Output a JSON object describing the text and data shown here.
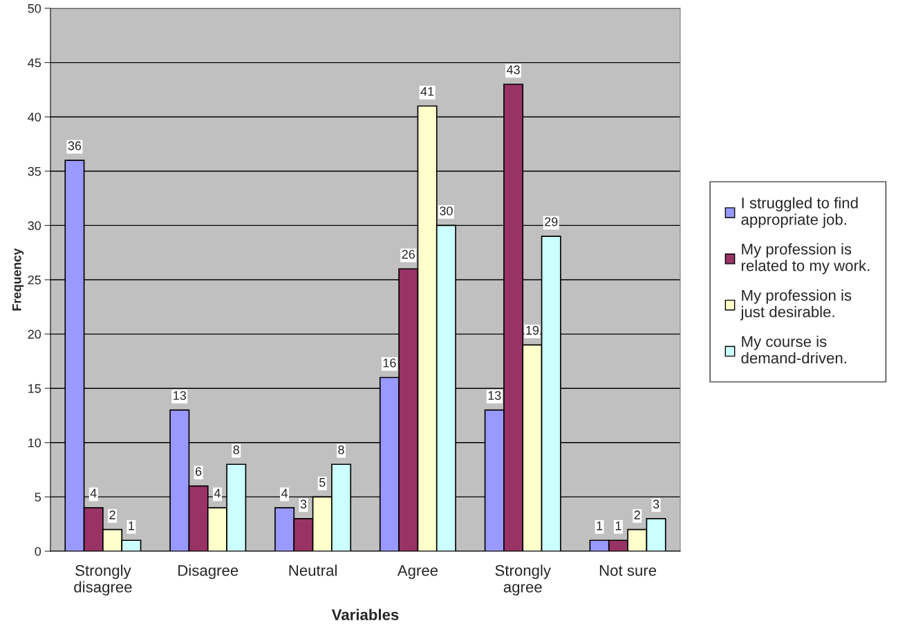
{
  "chart_data": {
    "type": "bar",
    "xlabel": "Variables",
    "ylabel": "Frequency",
    "categories": [
      "Strongly disagree",
      "Disagree",
      "Neutral",
      "Agree",
      "Strongly agree",
      "Not sure"
    ],
    "series": [
      {
        "name": "I struggled to find appropriate job.",
        "color": "#9999ff",
        "values": [
          36,
          13,
          4,
          16,
          13,
          1
        ]
      },
      {
        "name": "My profession is related to my work.",
        "color": "#993366",
        "values": [
          4,
          6,
          3,
          26,
          43,
          1
        ]
      },
      {
        "name": "My profession is just desirable.",
        "color": "#ffffcc",
        "values": [
          2,
          4,
          5,
          41,
          19,
          2
        ]
      },
      {
        "name": "My course is demand-driven.",
        "color": "#ccffff",
        "values": [
          1,
          8,
          8,
          30,
          29,
          3
        ]
      }
    ],
    "ylim": [
      0,
      50
    ],
    "yticks": [
      0,
      5,
      10,
      15,
      20,
      25,
      30,
      35,
      40,
      45,
      50
    ],
    "grid": "y",
    "legend": "right",
    "data_labels": true
  }
}
